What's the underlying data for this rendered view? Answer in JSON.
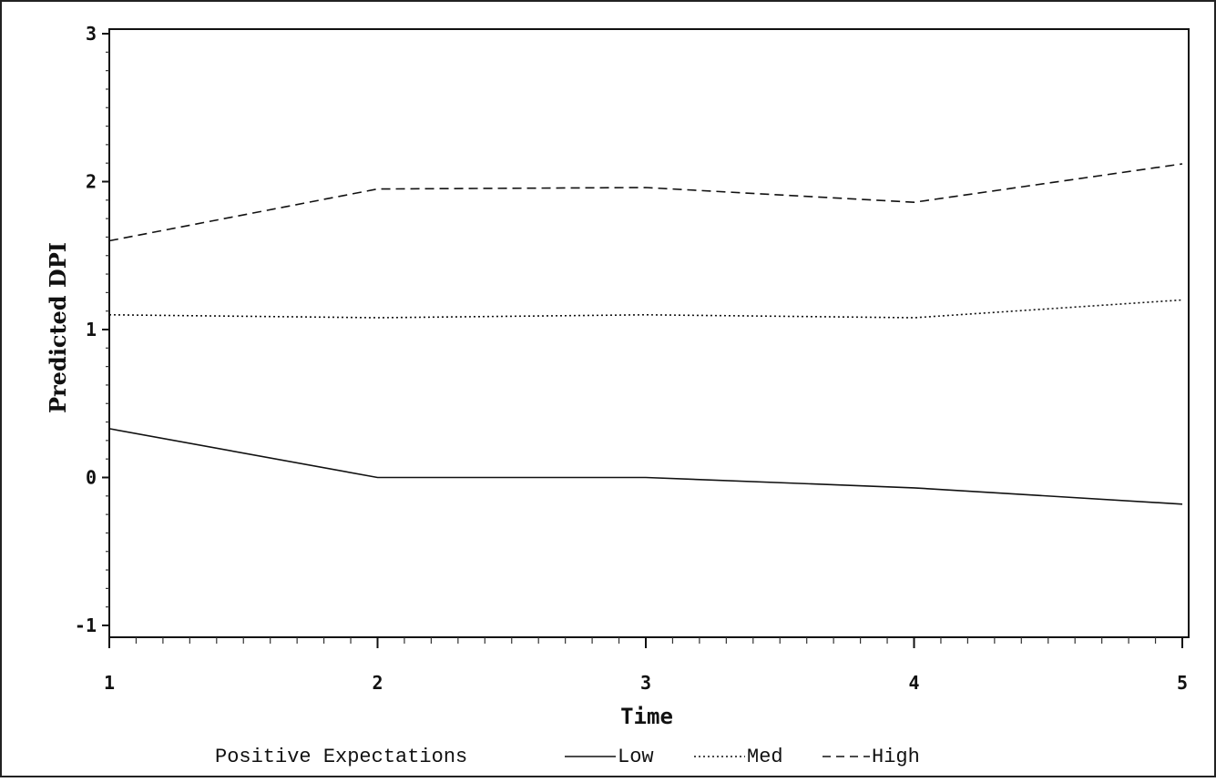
{
  "chart_data": {
    "type": "line",
    "xlabel": "Time",
    "ylabel": "Predicted DPI",
    "x": [
      1,
      2,
      3,
      4,
      5
    ],
    "xlim": [
      1,
      5
    ],
    "ylim": [
      -1,
      3
    ],
    "x_ticks": [
      "1",
      "2",
      "3",
      "4",
      "5"
    ],
    "y_ticks": [
      "-1",
      "0",
      "1",
      "2",
      "3"
    ],
    "grid": false,
    "legend": {
      "title": "Positive Expectations",
      "placement": "bottom"
    },
    "series": [
      {
        "name": "Low",
        "style": "solid",
        "values": [
          0.33,
          0.0,
          0.0,
          -0.07,
          -0.18
        ]
      },
      {
        "name": "Med",
        "style": "dotted",
        "values": [
          1.1,
          1.08,
          1.1,
          1.08,
          1.2
        ]
      },
      {
        "name": "High",
        "style": "dashed",
        "values": [
          1.6,
          1.95,
          1.96,
          1.86,
          2.12
        ]
      }
    ]
  }
}
